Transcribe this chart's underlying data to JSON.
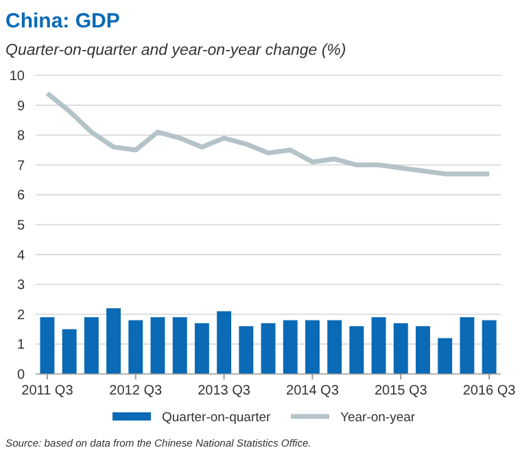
{
  "chart_data": {
    "type": "bar",
    "title": "China: GDP",
    "subtitle": "Quarter-on-quarter and year-on-year change (%)",
    "categories": [
      "2011 Q3",
      null,
      null,
      null,
      "2012 Q3",
      null,
      null,
      null,
      "2013 Q3",
      null,
      null,
      null,
      "2014 Q3",
      null,
      null,
      null,
      "2015 Q3",
      null,
      null,
      null,
      "2016 Q3"
    ],
    "series": [
      {
        "name": "Quarter-on-quarter",
        "color": "#0a6ab6",
        "values": [
          1.9,
          1.5,
          1.9,
          2.2,
          1.8,
          1.9,
          1.9,
          1.7,
          2.1,
          1.6,
          1.7,
          1.8,
          1.8,
          1.8,
          1.6,
          1.9,
          1.7,
          1.6,
          1.2,
          1.9,
          1.8
        ]
      },
      {
        "name": "Year-on-year",
        "type": "line",
        "color": "#b4c3c8",
        "values": [
          9.4,
          8.8,
          8.1,
          7.6,
          7.5,
          8.1,
          7.9,
          7.6,
          7.9,
          7.7,
          7.4,
          7.5,
          7.1,
          7.2,
          7.0,
          7.0,
          6.9,
          6.8,
          6.7,
          6.7,
          6.7
        ]
      }
    ],
    "ylim": [
      0,
      10
    ],
    "yticks": [
      0,
      1,
      2,
      3,
      4,
      5,
      6,
      7,
      8,
      9,
      10
    ],
    "grid": "y",
    "legend": "bottom",
    "marker": "none",
    "annotations": [
      "Source: based on data from the Chinese National Statistics Office."
    ]
  }
}
